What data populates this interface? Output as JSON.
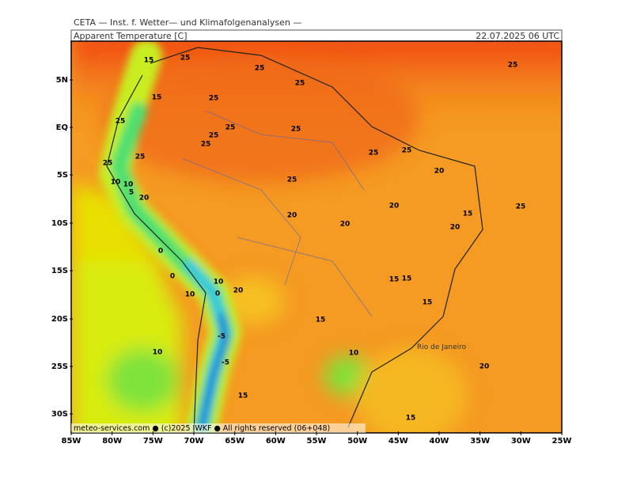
{
  "header": {
    "institute": "CETA — Inst. f. Wetter— und Klimafolgenanalysen —",
    "title": "Apparent Temperature [C]",
    "datetime": "22.07.2025 06 UTC"
  },
  "map": {
    "lat_labels": [
      "5N",
      "EQ",
      "5S",
      "10S",
      "15S",
      "20S",
      "25S",
      "30S"
    ],
    "lon_labels": [
      "85W",
      "80W",
      "75W",
      "70W",
      "65W",
      "60W",
      "55W",
      "50W",
      "45W",
      "40W",
      "35W",
      "30W",
      "25W"
    ],
    "contour_labels": [
      15,
      25,
      25,
      25,
      25,
      15,
      25,
      25,
      25,
      25,
      25,
      25,
      25,
      25,
      25,
      25,
      20,
      25,
      10,
      10,
      5,
      20,
      20,
      25,
      20,
      15,
      20,
      20,
      0,
      0,
      15,
      15,
      10,
      10,
      0,
      20,
      15,
      15,
      -5,
      10,
      10,
      -5,
      20,
      15,
      15
    ],
    "place_label": "Rio de Janeiro",
    "footer": "meteo-services.com ● (c)2025 IWKF ● All rights reserved (06+048)"
  }
}
